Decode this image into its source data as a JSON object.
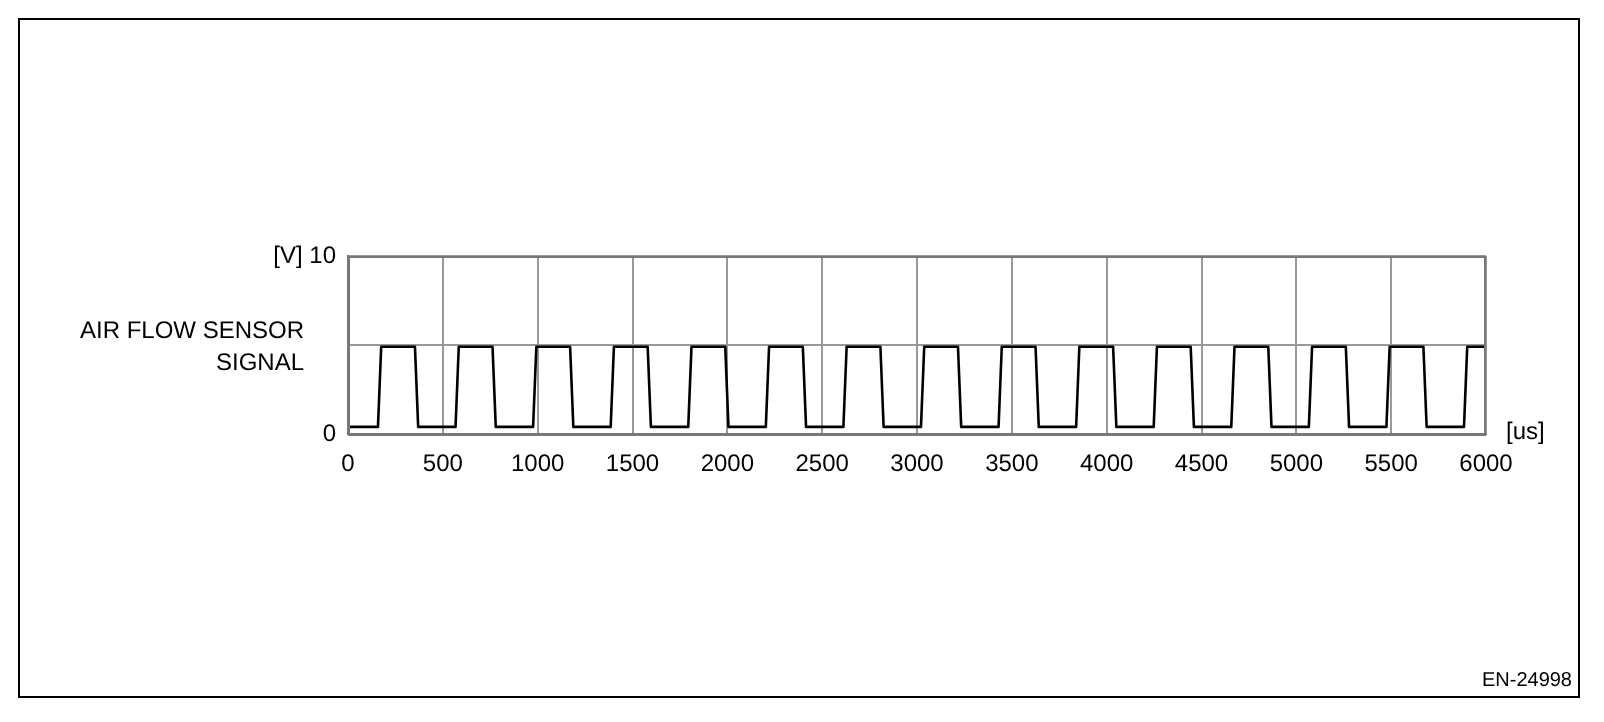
{
  "chart_data": {
    "type": "line",
    "ylabel": "AIR FLOW SENSOR SIGNAL",
    "xlabel": "[us]",
    "annotations": [
      "EN-24998"
    ],
    "xlim": [
      0,
      6000
    ],
    "xticks": [
      0,
      500,
      1000,
      1500,
      2000,
      2500,
      3000,
      3500,
      4000,
      4500,
      5000,
      5500,
      6000
    ],
    "ylim": [
      0,
      10
    ],
    "yticks": [
      0,
      {
        "value": 5,
        "label": null
      },
      {
        "value": 10,
        "label": "[V] 10"
      }
    ],
    "grid": true,
    "legend": false,
    "marker": "none",
    "line_style": "solid",
    "series": [
      {
        "color": "#000000",
        "x": [
          0,
          158,
          175,
          353,
          370,
          567,
          584,
          762,
          779,
          976,
          993,
          1171,
          1188,
          1385,
          1402,
          1580,
          1597,
          1794,
          1811,
          1989,
          2006,
          2203,
          2220,
          2398,
          2415,
          2612,
          2629,
          2807,
          2824,
          3021,
          3038,
          3216,
          3233,
          3430,
          3447,
          3625,
          3642,
          3839,
          3856,
          4034,
          4051,
          4248,
          4265,
          4443,
          4460,
          4657,
          4674,
          4852,
          4869,
          5066,
          5083,
          5261,
          5278,
          5475,
          5492,
          5670,
          5687,
          5884,
          5901,
          6000
        ],
        "values": [
          0.4,
          0.4,
          4.9,
          4.9,
          0.4,
          0.4,
          4.9,
          4.9,
          0.4,
          0.4,
          4.9,
          4.9,
          0.4,
          0.4,
          4.9,
          4.9,
          0.4,
          0.4,
          4.9,
          4.9,
          0.4,
          0.4,
          4.9,
          4.9,
          0.4,
          0.4,
          4.9,
          4.9,
          0.4,
          0.4,
          4.9,
          4.9,
          0.4,
          0.4,
          4.9,
          4.9,
          0.4,
          0.4,
          4.9,
          4.9,
          0.4,
          0.4,
          4.9,
          4.9,
          0.4,
          0.4,
          4.9,
          4.9,
          0.4,
          0.4,
          4.9,
          4.9,
          0.4,
          0.4,
          4.9,
          4.9,
          0.4,
          0.4,
          4.9,
          4.9
        ]
      }
    ]
  }
}
